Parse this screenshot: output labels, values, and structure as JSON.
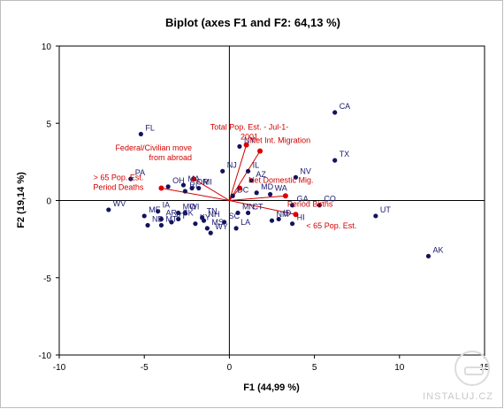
{
  "chart_data": {
    "type": "scatter",
    "title": "Biplot (axes F1 and F2: 64,13 %)",
    "xlabel": "F1 (44,99 %)",
    "ylabel": "F2 (19,14 %)",
    "xlim": [
      -10,
      15
    ],
    "ylim": [
      -10,
      10
    ],
    "xticks": [
      -10,
      -5,
      0,
      5,
      10,
      15
    ],
    "yticks": [
      -10,
      -5,
      0,
      5,
      10
    ],
    "observations": [
      {
        "label": "CA",
        "x": 6.2,
        "y": 5.7
      },
      {
        "label": "FL",
        "x": -5.2,
        "y": 4.3
      },
      {
        "label": "NY",
        "x": 0.6,
        "y": 3.5
      },
      {
        "label": "TX",
        "x": 6.2,
        "y": 2.6
      },
      {
        "label": "NJ",
        "x": -0.4,
        "y": 1.9
      },
      {
        "label": "IL",
        "x": 1.1,
        "y": 1.9
      },
      {
        "label": "NV",
        "x": 3.9,
        "y": 1.5
      },
      {
        "label": "PA",
        "x": -5.8,
        "y": 1.4
      },
      {
        "label": "AZ",
        "x": 1.3,
        "y": 1.3
      },
      {
        "label": "MA",
        "x": -2.7,
        "y": 1.0
      },
      {
        "label": "OH",
        "x": -3.6,
        "y": 0.9
      },
      {
        "label": "MI",
        "x": -1.8,
        "y": 0.8
      },
      {
        "label": "OR",
        "x": -2.2,
        "y": 0.8
      },
      {
        "label": "RI",
        "x": -2.6,
        "y": 0.6
      },
      {
        "label": "MD",
        "x": 1.6,
        "y": 0.5
      },
      {
        "label": "WA",
        "x": 2.4,
        "y": 0.4
      },
      {
        "label": "DC",
        "x": 0.2,
        "y": 0.3
      },
      {
        "label": "GA",
        "x": 3.7,
        "y": -0.3
      },
      {
        "label": "CO",
        "x": 5.3,
        "y": -0.3
      },
      {
        "label": "WV",
        "x": -7.1,
        "y": -0.6
      },
      {
        "label": "ME",
        "x": -5.0,
        "y": -1.0
      },
      {
        "label": "IA",
        "x": -4.2,
        "y": -0.7
      },
      {
        "label": "MO",
        "x": -3.0,
        "y": -0.8
      },
      {
        "label": "WI",
        "x": -2.6,
        "y": -0.8
      },
      {
        "label": "MN",
        "x": 0.5,
        "y": -0.8
      },
      {
        "label": "CT",
        "x": 1.1,
        "y": -0.8
      },
      {
        "label": "ND",
        "x": -4.8,
        "y": -1.6
      },
      {
        "label": "AR",
        "x": -4.0,
        "y": -1.2
      },
      {
        "label": "VT",
        "x": -3.4,
        "y": -1.4
      },
      {
        "label": "SK",
        "x": -3.0,
        "y": -1.2
      },
      {
        "label": "TN",
        "x": -1.6,
        "y": -1.1
      },
      {
        "label": "NH",
        "x": -1.5,
        "y": -1.3
      },
      {
        "label": "KY",
        "x": -2.0,
        "y": -1.5
      },
      {
        "label": "MT",
        "x": -4.0,
        "y": -1.6
      },
      {
        "label": "MS",
        "x": -1.3,
        "y": -1.8
      },
      {
        "label": "WY",
        "x": -1.1,
        "y": -2.1
      },
      {
        "label": "SC",
        "x": -0.3,
        "y": -1.4
      },
      {
        "label": "LA",
        "x": 0.4,
        "y": -1.8
      },
      {
        "label": "NM",
        "x": 2.5,
        "y": -1.3
      },
      {
        "label": "ID",
        "x": 2.9,
        "y": -1.2
      },
      {
        "label": "UT",
        "x": 8.6,
        "y": -1.0
      },
      {
        "label": "HI",
        "x": 3.7,
        "y": -1.5
      },
      {
        "label": "AK",
        "x": 11.7,
        "y": -3.6
      }
    ],
    "variables": [
      {
        "label": "Total Pop. Est. - Jul-1-2001",
        "x": 1.8,
        "y": 3.2
      },
      {
        "label": "Net Int. Migration",
        "x": 1.0,
        "y": 3.6
      },
      {
        "label": "Federal/Civilian move from abroad",
        "x": -2.1,
        "y": 1.4
      },
      {
        "label": "> 65 Pop. Est. Period Deaths",
        "x": -4.0,
        "y": 0.8
      },
      {
        "label": "Net Domestic Mig.",
        "x": 0.6,
        "y": 0.8
      },
      {
        "label": "Period Births",
        "x": 3.3,
        "y": 0.3
      },
      {
        "label": "< 65 Pop. Est.",
        "x": 3.9,
        "y": -0.9
      }
    ]
  },
  "watermark": "INSTALUJ.CZ"
}
